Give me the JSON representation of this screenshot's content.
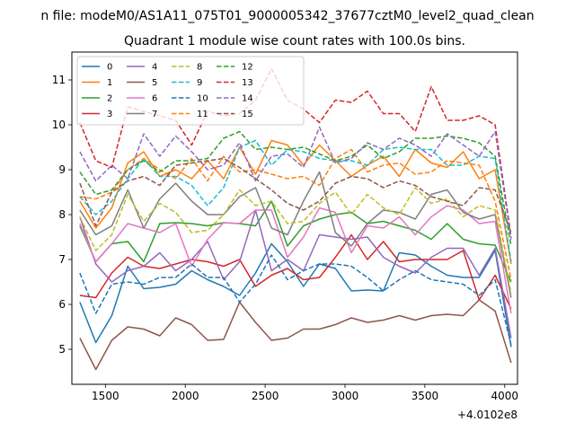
{
  "suptitle": "n file: modeM0/AS1A11_075T01_9000005342_37677cztM0_level2_quad_clean",
  "chart_data": {
    "type": "line",
    "title": "Quadrant 1 module wise count rates with 100.0s bins.",
    "xlabel": "",
    "ylabel": "",
    "x_offset_label": "+4.0102e8",
    "xlim": [
      1290,
      4080
    ],
    "ylim": [
      4.22,
      11.62
    ],
    "xticks": [
      1500,
      2000,
      2500,
      3000,
      3500,
      4000
    ],
    "yticks": [
      5,
      6,
      7,
      8,
      9,
      10,
      11
    ],
    "grid": false,
    "legend_position": "top-left",
    "legend_columns": 5,
    "x": [
      1340,
      1440,
      1540,
      1640,
      1740,
      1840,
      1940,
      2040,
      2140,
      2240,
      2340,
      2440,
      2540,
      2640,
      2740,
      2840,
      2940,
      3040,
      3140,
      3240,
      3340,
      3440,
      3540,
      3640,
      3740,
      3840,
      3940,
      4040
    ],
    "series": [
      {
        "name": "0",
        "color": "#1f77b4",
        "dash": "solid",
        "values": [
          6.05,
          5.15,
          5.75,
          6.85,
          6.35,
          6.38,
          6.45,
          6.75,
          6.55,
          6.4,
          6.2,
          6.7,
          7.35,
          6.95,
          6.4,
          6.9,
          6.8,
          6.3,
          6.32,
          6.3,
          7.15,
          7.1,
          6.85,
          6.65,
          6.6,
          6.6,
          7.2,
          5.05
        ]
      },
      {
        "name": "1",
        "color": "#ff7f0e",
        "dash": "solid",
        "values": [
          8.3,
          7.7,
          8.15,
          9.15,
          9.4,
          8.85,
          9.0,
          8.8,
          9.2,
          8.8,
          9.5,
          8.9,
          9.65,
          9.55,
          9.1,
          9.55,
          9.2,
          8.85,
          9.1,
          9.3,
          8.85,
          9.45,
          9.15,
          9.05,
          9.4,
          8.8,
          9.0,
          6.9
        ]
      },
      {
        "name": "2",
        "color": "#2ca02c",
        "dash": "solid",
        "values": [
          7.75,
          6.95,
          7.35,
          7.4,
          6.95,
          7.8,
          7.82,
          7.8,
          7.75,
          7.82,
          7.8,
          7.75,
          8.3,
          7.3,
          7.75,
          7.9,
          8.0,
          8.05,
          7.8,
          7.85,
          7.75,
          7.65,
          7.45,
          7.8,
          7.45,
          7.35,
          7.32,
          6.5
        ]
      },
      {
        "name": "3",
        "color": "#d62728",
        "dash": "solid",
        "values": [
          6.2,
          6.15,
          6.7,
          7.05,
          6.85,
          6.8,
          6.9,
          7.0,
          6.95,
          6.85,
          7.0,
          6.4,
          6.65,
          6.8,
          6.55,
          6.6,
          7.05,
          7.55,
          7.0,
          7.4,
          6.95,
          7.0,
          7.0,
          7.0,
          7.2,
          6.1,
          6.65,
          5.9
        ]
      },
      {
        "name": "4",
        "color": "#9467bd",
        "dash": "solid",
        "values": [
          7.95,
          6.9,
          6.5,
          6.75,
          6.85,
          7.15,
          6.75,
          7.0,
          7.4,
          6.55,
          6.95,
          8.1,
          6.75,
          7.0,
          6.75,
          7.55,
          7.5,
          7.45,
          7.5,
          7.05,
          6.85,
          6.7,
          7.05,
          7.25,
          7.25,
          6.65,
          7.25,
          5.25
        ]
      },
      {
        "name": "5",
        "color": "#8c564b",
        "dash": "solid",
        "values": [
          5.25,
          4.55,
          5.2,
          5.5,
          5.45,
          5.3,
          5.7,
          5.55,
          5.2,
          5.22,
          6.05,
          5.6,
          5.2,
          5.25,
          5.45,
          5.45,
          5.55,
          5.7,
          5.6,
          5.65,
          5.75,
          5.65,
          5.75,
          5.78,
          5.75,
          6.1,
          5.85,
          4.7
        ]
      },
      {
        "name": "6",
        "color": "#e377c2",
        "dash": "solid",
        "values": [
          7.8,
          6.95,
          7.35,
          7.8,
          7.7,
          7.6,
          7.8,
          6.85,
          7.45,
          7.82,
          7.8,
          8.1,
          8.1,
          7.05,
          7.5,
          8.15,
          8.05,
          7.15,
          7.75,
          7.7,
          7.95,
          7.55,
          7.95,
          8.2,
          8.1,
          7.8,
          7.85,
          5.8
        ]
      },
      {
        "name": "7",
        "color": "#7f7f7f",
        "dash": "solid",
        "values": [
          8.1,
          7.55,
          7.75,
          8.55,
          7.7,
          8.35,
          8.7,
          8.3,
          8.0,
          8.0,
          8.4,
          8.6,
          7.7,
          7.55,
          8.3,
          8.95,
          7.6,
          7.3,
          7.8,
          8.1,
          8.05,
          7.9,
          8.45,
          8.55,
          8.05,
          7.9,
          8.0,
          6.15
        ]
      },
      {
        "name": "8",
        "color": "#bcbd22",
        "dash": "dashed",
        "values": [
          7.95,
          7.2,
          7.55,
          8.45,
          7.85,
          8.25,
          8.05,
          7.6,
          7.65,
          8.0,
          8.55,
          8.2,
          8.3,
          7.8,
          7.85,
          8.25,
          8.5,
          8.0,
          8.45,
          8.15,
          8.0,
          8.6,
          8.25,
          8.35,
          7.95,
          8.2,
          8.1,
          6.25
        ]
      },
      {
        "name": "9",
        "color": "#17becf",
        "dash": "dashed",
        "values": [
          8.4,
          8.0,
          8.3,
          8.8,
          9.25,
          8.85,
          8.85,
          8.65,
          8.2,
          8.6,
          9.5,
          9.65,
          9.1,
          9.45,
          9.4,
          9.25,
          9.2,
          9.2,
          9.1,
          9.45,
          9.5,
          9.45,
          9.45,
          9.1,
          9.1,
          9.3,
          9.25,
          6.95
        ]
      },
      {
        "name": "10",
        "color": "#1f77b4",
        "dash": "dashed",
        "values": [
          6.7,
          5.8,
          6.45,
          6.5,
          6.45,
          6.6,
          6.6,
          6.9,
          6.6,
          6.6,
          6.05,
          6.45,
          7.1,
          6.55,
          6.75,
          6.9,
          6.9,
          6.85,
          6.6,
          6.3,
          6.55,
          6.75,
          6.55,
          6.5,
          6.45,
          6.2,
          6.55,
          5.1
        ]
      },
      {
        "name": "11",
        "color": "#ff7f0e",
        "dash": "dashed",
        "values": [
          8.4,
          8.35,
          8.5,
          9.0,
          9.25,
          9.0,
          8.8,
          9.25,
          8.75,
          9.3,
          8.95,
          9.0,
          8.9,
          8.8,
          8.85,
          8.65,
          9.25,
          9.45,
          8.95,
          9.1,
          9.15,
          8.9,
          8.95,
          9.2,
          9.15,
          9.1,
          8.3,
          6.55
        ]
      },
      {
        "name": "12",
        "color": "#2ca02c",
        "dash": "dashed",
        "values": [
          8.95,
          8.45,
          8.55,
          9.0,
          9.2,
          8.95,
          9.2,
          9.2,
          9.25,
          9.7,
          9.85,
          9.45,
          9.5,
          9.45,
          9.5,
          9.35,
          9.2,
          9.3,
          9.55,
          9.25,
          9.4,
          9.7,
          9.7,
          9.75,
          9.7,
          9.6,
          9.3,
          7.3
        ]
      },
      {
        "name": "13",
        "color": "#d62728",
        "dash": "dashed",
        "values": [
          10.05,
          9.2,
          9.05,
          10.4,
          10.3,
          10.2,
          10.1,
          9.55,
          10.3,
          10.2,
          10.25,
          10.55,
          11.25,
          10.55,
          10.35,
          10.05,
          10.55,
          10.5,
          10.75,
          10.25,
          10.25,
          9.85,
          10.85,
          10.1,
          10.1,
          10.2,
          10.0,
          7.5
        ]
      },
      {
        "name": "14",
        "color": "#9467bd",
        "dash": "dashed",
        "values": [
          9.4,
          8.75,
          9.1,
          8.8,
          9.8,
          9.3,
          9.75,
          9.4,
          9.0,
          9.1,
          9.6,
          8.75,
          9.3,
          9.35,
          9.05,
          9.95,
          9.15,
          9.25,
          9.6,
          9.45,
          9.7,
          9.55,
          9.3,
          9.8,
          9.55,
          9.3,
          9.85,
          7.45
        ]
      },
      {
        "name": "15",
        "color": "#8c564b",
        "dash": "dashed",
        "values": [
          8.7,
          7.75,
          8.5,
          8.75,
          8.85,
          8.65,
          9.1,
          9.15,
          9.2,
          9.25,
          9.05,
          8.8,
          8.55,
          8.25,
          8.1,
          8.3,
          8.7,
          8.85,
          8.8,
          8.6,
          8.75,
          8.65,
          8.4,
          8.3,
          8.2,
          8.6,
          8.55,
          7.6
        ]
      }
    ]
  }
}
